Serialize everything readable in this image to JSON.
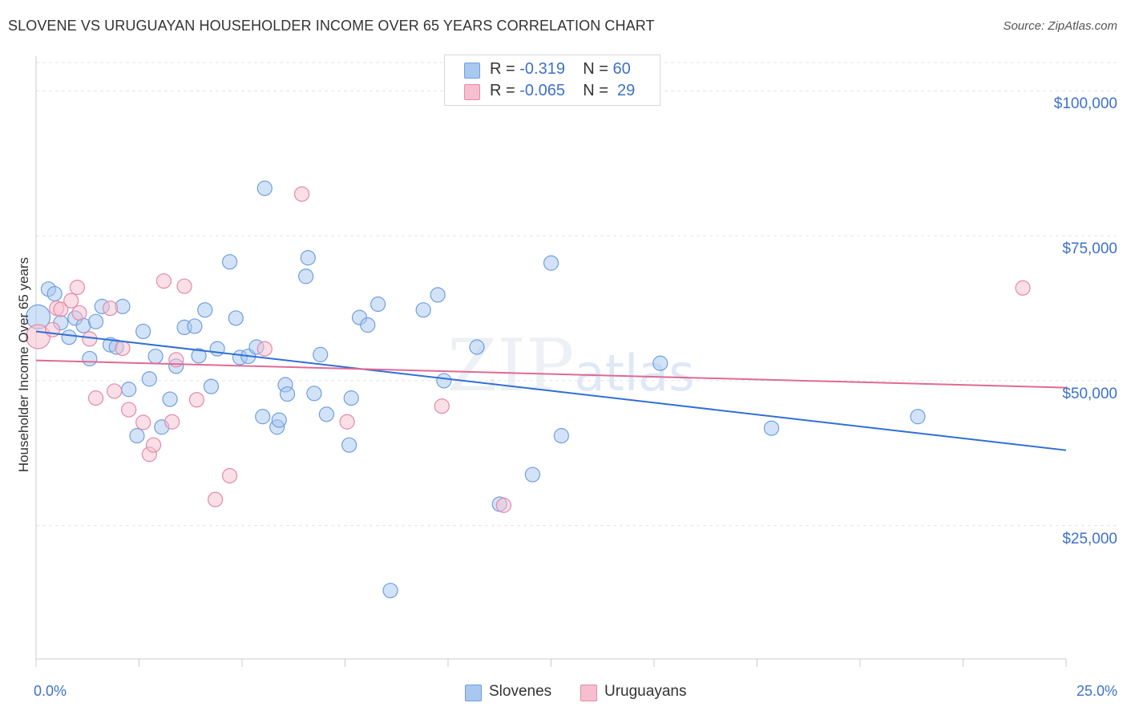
{
  "title": "SLOVENE VS URUGUAYAN HOUSEHOLDER INCOME OVER 65 YEARS CORRELATION CHART",
  "source": "Source: ZipAtlas.com",
  "watermark": {
    "zip": "ZIP",
    "atlas": "atlas"
  },
  "legend_top": [
    {
      "r_label": "R = ",
      "r_value": "-0.319",
      "n_label": "N = ",
      "n_value": "60",
      "color": "#a8c8f0",
      "border": "#6f9fe0"
    },
    {
      "r_label": "R = ",
      "r_value": "-0.065",
      "n_label": "N = ",
      "n_value": "29",
      "color": "#f6bfd0",
      "border": "#e48aa8"
    }
  ],
  "legend_bottom": [
    {
      "label": "Slovenes",
      "color": "#a8c8f0",
      "border": "#6f9fe0"
    },
    {
      "label": "Uruguayans",
      "color": "#f6bfd0",
      "border": "#e48aa8"
    }
  ],
  "chart_data": {
    "type": "scatter",
    "title": "SLOVENE VS URUGUAYAN HOUSEHOLDER INCOME OVER 65 YEARS CORRELATION CHART",
    "xlabel": "",
    "ylabel": "Householder Income Over 65 years",
    "xlim": [
      0,
      25
    ],
    "ylim": [
      2000,
      106000
    ],
    "x_tick_labels": [
      "0.0%",
      "25.0%"
    ],
    "y_ticks": [
      25000,
      50000,
      75000,
      100000
    ],
    "y_tick_labels": [
      "$25,000",
      "$50,000",
      "$75,000",
      "$100,000"
    ],
    "grid": true,
    "legend_position": "top-center",
    "series": [
      {
        "name": "Slovenes",
        "color": "#6f9fe0",
        "fill": "#a8c8f0",
        "line_color": "#2f6fd6",
        "trend": {
          "x": [
            0,
            25
          ],
          "y": [
            58500,
            38000
          ]
        },
        "points": [
          [
            0.05,
            61000
          ],
          [
            0.3,
            65800
          ],
          [
            0.45,
            65000
          ],
          [
            0.6,
            60000
          ],
          [
            0.8,
            57500
          ],
          [
            0.95,
            60800
          ],
          [
            1.15,
            59500
          ],
          [
            1.3,
            53800
          ],
          [
            1.45,
            60200
          ],
          [
            1.6,
            62800
          ],
          [
            1.8,
            56200
          ],
          [
            1.95,
            55800
          ],
          [
            2.1,
            62800
          ],
          [
            2.25,
            48500
          ],
          [
            2.45,
            40500
          ],
          [
            2.6,
            58500
          ],
          [
            2.75,
            50300
          ],
          [
            2.9,
            54200
          ],
          [
            3.05,
            42000
          ],
          [
            3.25,
            46800
          ],
          [
            3.4,
            52500
          ],
          [
            3.6,
            59200
          ],
          [
            3.85,
            59400
          ],
          [
            3.95,
            54300
          ],
          [
            4.1,
            62200
          ],
          [
            4.25,
            49000
          ],
          [
            4.4,
            55500
          ],
          [
            4.7,
            70500
          ],
          [
            4.85,
            60800
          ],
          [
            4.95,
            54000
          ],
          [
            5.15,
            54200
          ],
          [
            5.35,
            55800
          ],
          [
            5.5,
            43800
          ],
          [
            5.55,
            83200
          ],
          [
            5.85,
            42000
          ],
          [
            5.9,
            43200
          ],
          [
            6.05,
            49300
          ],
          [
            6.1,
            47700
          ],
          [
            6.55,
            68000
          ],
          [
            6.6,
            71200
          ],
          [
            6.75,
            47800
          ],
          [
            6.9,
            54500
          ],
          [
            7.05,
            44200
          ],
          [
            7.6,
            38900
          ],
          [
            7.65,
            47000
          ],
          [
            7.85,
            60900
          ],
          [
            8.05,
            59600
          ],
          [
            8.3,
            63200
          ],
          [
            8.6,
            13800
          ],
          [
            9.4,
            62200
          ],
          [
            9.75,
            64800
          ],
          [
            9.9,
            50000
          ],
          [
            10.7,
            55800
          ],
          [
            11.25,
            28700
          ],
          [
            12.05,
            33800
          ],
          [
            12.5,
            70300
          ],
          [
            12.75,
            40500
          ],
          [
            15.15,
            53000
          ],
          [
            17.85,
            41800
          ],
          [
            21.4,
            43800
          ]
        ]
      },
      {
        "name": "Uruguayans",
        "color": "#e48aa8",
        "fill": "#f6bfd0",
        "line_color": "#e06a94",
        "trend": {
          "x": [
            0,
            25
          ],
          "y": [
            53500,
            48800
          ]
        },
        "points": [
          [
            0.05,
            57600
          ],
          [
            0.4,
            58800
          ],
          [
            0.5,
            62500
          ],
          [
            0.6,
            62300
          ],
          [
            0.85,
            63800
          ],
          [
            1.0,
            66100
          ],
          [
            1.05,
            61700
          ],
          [
            1.3,
            57200
          ],
          [
            1.45,
            47000
          ],
          [
            1.8,
            62500
          ],
          [
            1.9,
            48200
          ],
          [
            2.1,
            55600
          ],
          [
            2.25,
            45000
          ],
          [
            2.6,
            42800
          ],
          [
            2.75,
            37300
          ],
          [
            2.85,
            38900
          ],
          [
            3.1,
            67200
          ],
          [
            3.3,
            42900
          ],
          [
            3.4,
            53600
          ],
          [
            3.6,
            66300
          ],
          [
            3.9,
            46700
          ],
          [
            4.35,
            29500
          ],
          [
            4.7,
            33600
          ],
          [
            5.55,
            55500
          ],
          [
            6.45,
            82200
          ],
          [
            7.55,
            42900
          ],
          [
            9.85,
            45600
          ],
          [
            11.35,
            28500
          ],
          [
            23.95,
            66000
          ]
        ]
      }
    ]
  }
}
